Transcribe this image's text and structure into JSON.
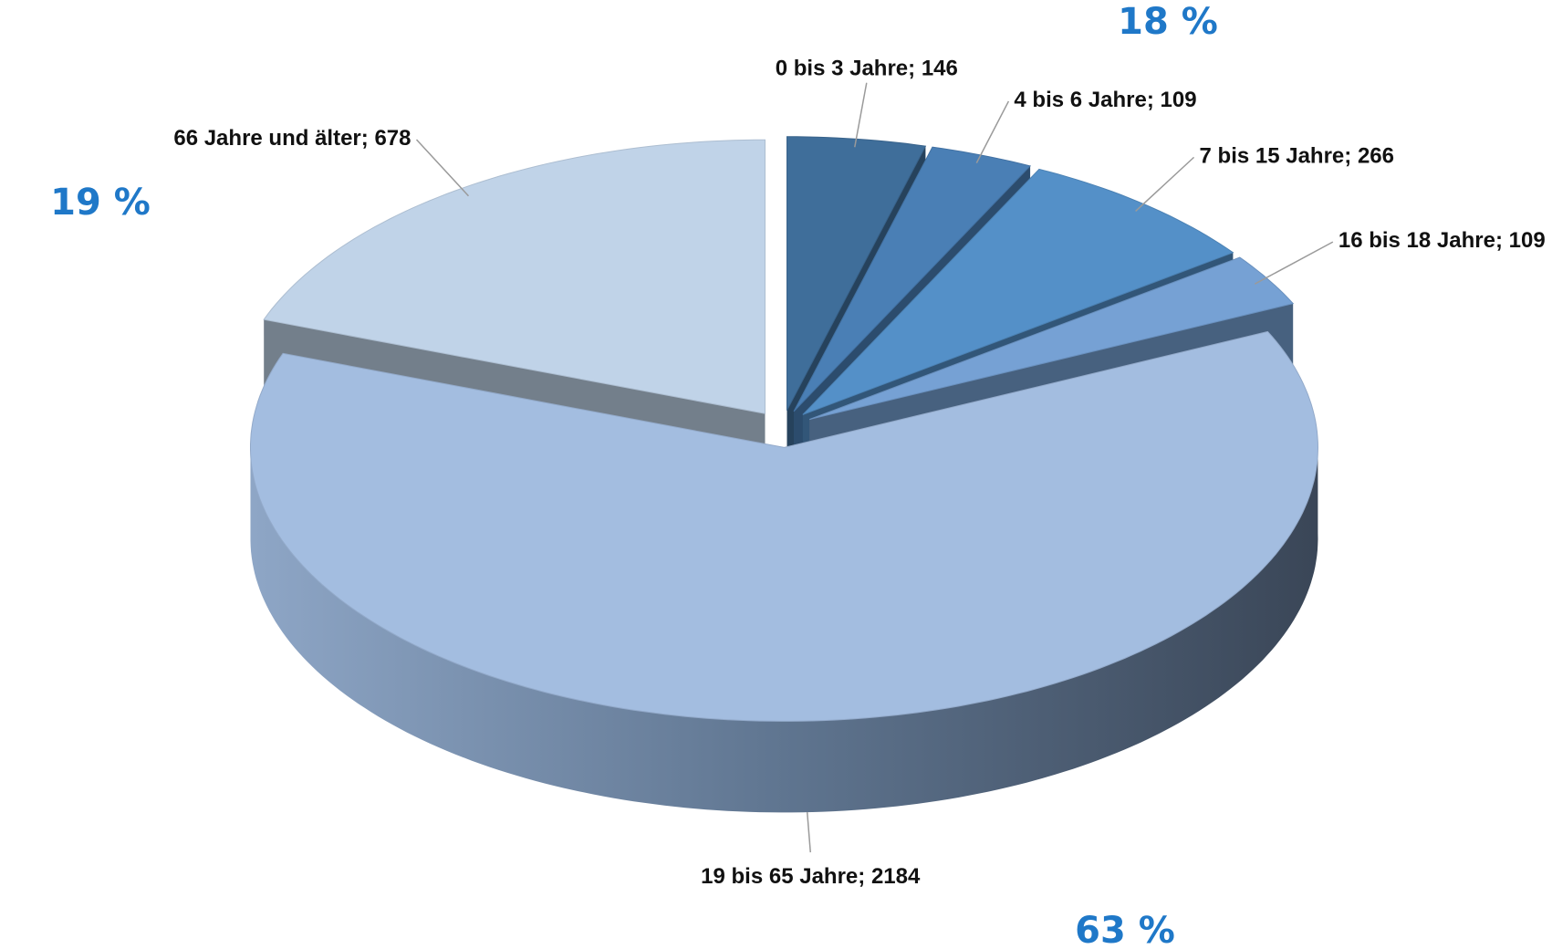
{
  "chart_data": {
    "type": "pie3d",
    "categories": [
      "0 bis 3 Jahre",
      "4 bis 6 Jahre",
      "7 bis 15 Jahre",
      "16 bis 18 Jahre",
      "19 bis 65 Jahre",
      "66 Jahre und älter"
    ],
    "values": [
      146,
      109,
      266,
      109,
      2184,
      678
    ],
    "colors": [
      "#3f6e9a",
      "#4a7fb5",
      "#5490c8",
      "#76a1d4",
      "#a3bde0",
      "#c0d3e8"
    ],
    "annotations": [
      "18 %",
      "19 %",
      "63 %"
    ]
  }
}
